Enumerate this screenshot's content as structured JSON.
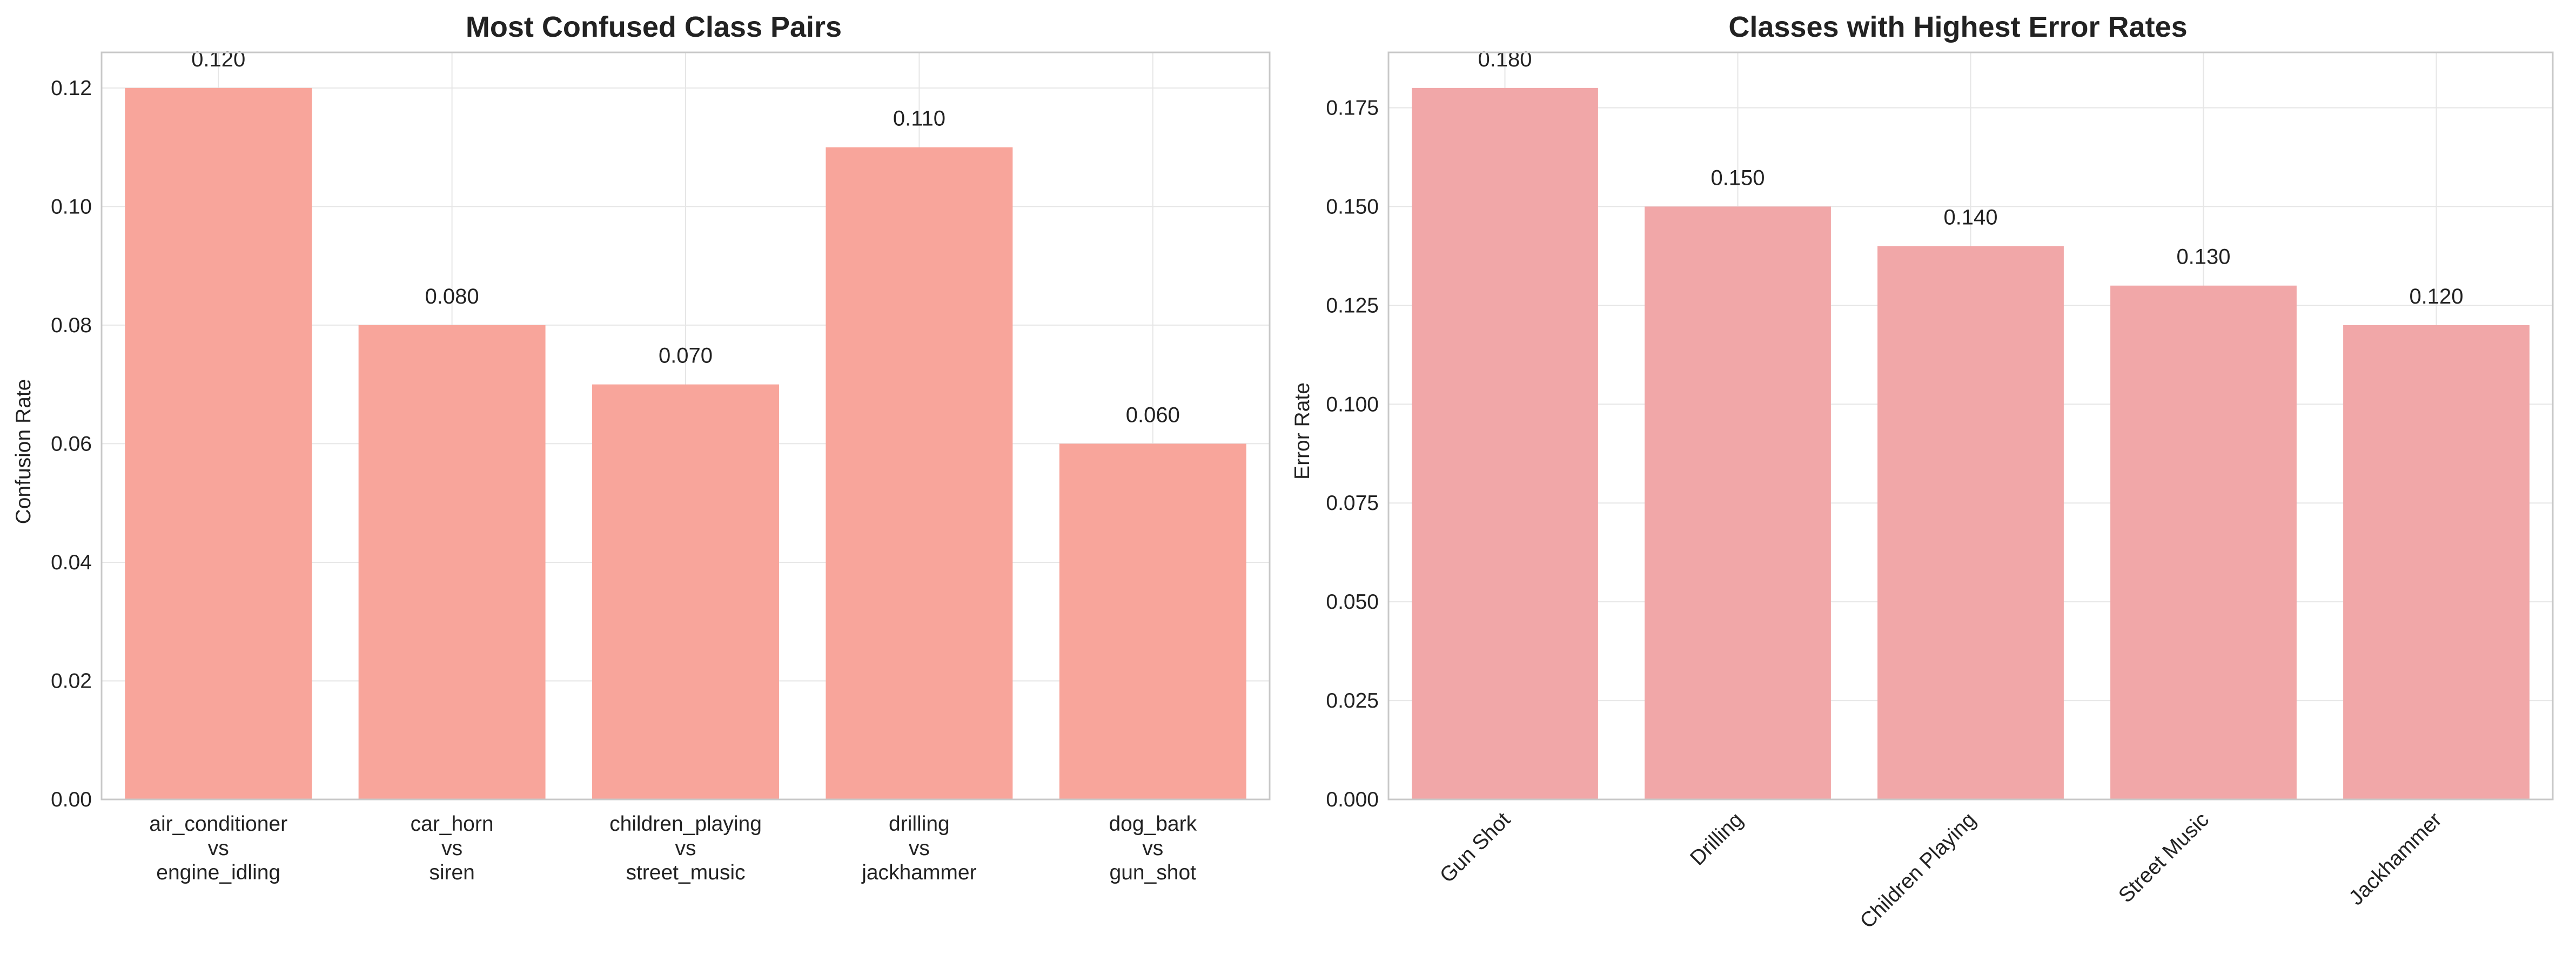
{
  "chart_data": [
    {
      "type": "bar",
      "title": "Most Confused Class Pairs",
      "xlabel": "",
      "ylabel": "Confusion Rate",
      "categories": [
        [
          "air_conditioner",
          "vs",
          "engine_idling"
        ],
        [
          "car_horn",
          "vs",
          "siren"
        ],
        [
          "children_playing",
          "vs",
          "street_music"
        ],
        [
          "drilling",
          "vs",
          "jackhammer"
        ],
        [
          "dog_bark",
          "vs",
          "gun_shot"
        ]
      ],
      "values": [
        0.12,
        0.08,
        0.07,
        0.11,
        0.06
      ],
      "value_labels": [
        "0.120",
        "0.080",
        "0.070",
        "0.110",
        "0.060"
      ],
      "ylim": [
        0,
        0.126
      ],
      "yticks": [
        0.0,
        0.02,
        0.04,
        0.06,
        0.08,
        0.1,
        0.12
      ],
      "ytick_labels": [
        "0.00",
        "0.02",
        "0.04",
        "0.06",
        "0.08",
        "0.10",
        "0.12"
      ],
      "x_tick_rotation": 0,
      "bar_color": "#f8a59b",
      "grid": true
    },
    {
      "type": "bar",
      "title": "Classes with Highest Error Rates",
      "xlabel": "",
      "ylabel": "Error Rate",
      "categories": [
        "Gun Shot",
        "Drilling",
        "Children Playing",
        "Street Music",
        "Jackhammer"
      ],
      "values": [
        0.18,
        0.15,
        0.14,
        0.13,
        0.12
      ],
      "value_labels": [
        "0.180",
        "0.150",
        "0.140",
        "0.130",
        "0.120"
      ],
      "ylim": [
        0,
        0.189
      ],
      "yticks": [
        0.0,
        0.025,
        0.05,
        0.075,
        0.1,
        0.125,
        0.15,
        0.175
      ],
      "ytick_labels": [
        "0.000",
        "0.025",
        "0.050",
        "0.075",
        "0.100",
        "0.125",
        "0.150",
        "0.175"
      ],
      "x_tick_rotation": -45,
      "bar_color": "#f1a7a8",
      "grid": true
    }
  ]
}
